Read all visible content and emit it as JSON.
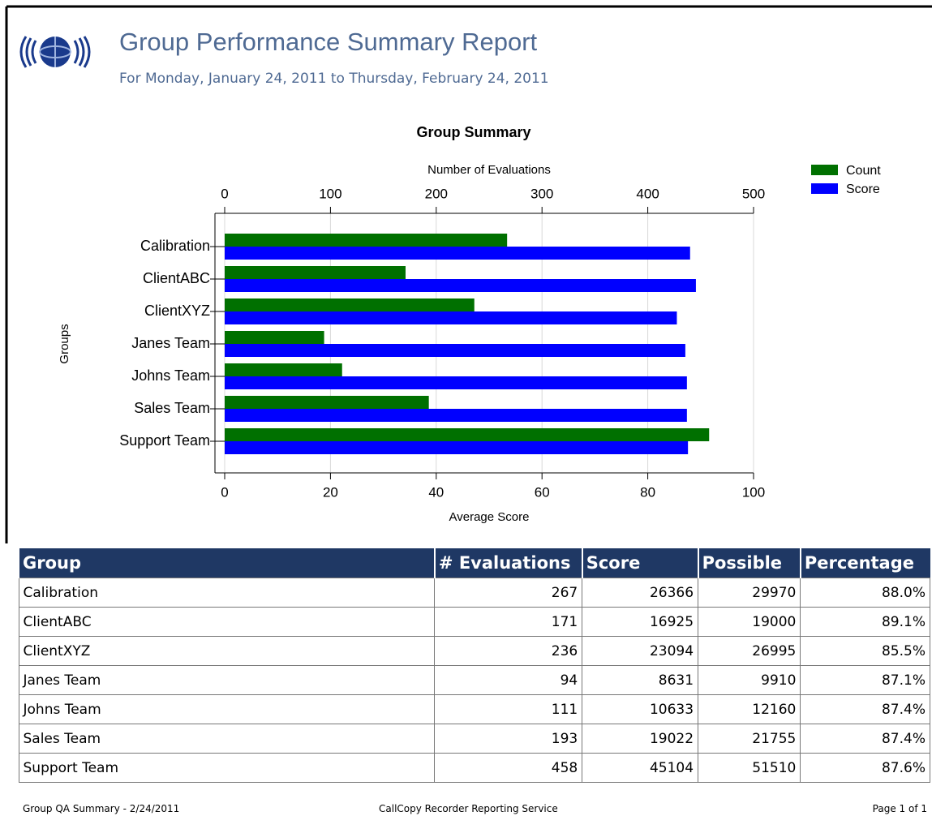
{
  "header": {
    "title": "Group Performance Summary Report",
    "subtitle": "For Monday, January 24, 2011 to Thursday, February 24, 2011"
  },
  "chart_data": {
    "type": "hbar",
    "title": "Group Summary",
    "categories": [
      "Calibration",
      "ClientABC",
      "ClientXYZ",
      "Janes Team",
      "Johns Team",
      "Sales Team",
      "Support Team"
    ],
    "series": [
      {
        "name": "Count",
        "color": "#007000",
        "axis": "x2",
        "values": [
          267,
          171,
          236,
          94,
          111,
          193,
          458
        ]
      },
      {
        "name": "Score",
        "color": "#0000ff",
        "values": [
          88.0,
          89.1,
          85.5,
          87.1,
          87.4,
          87.4,
          87.6
        ]
      }
    ],
    "ylabel": "Groups",
    "xlabel": "Average Score",
    "x2label": "Number of Evaluations",
    "xlim": [
      0,
      100
    ],
    "xticks": [
      0,
      20,
      40,
      60,
      80,
      100
    ],
    "x2lim": [
      0,
      500
    ],
    "x2ticks": [
      0,
      100,
      200,
      300,
      400,
      500
    ],
    "grid": true,
    "legend": "top-right"
  },
  "table": {
    "header": [
      "Group",
      "# Evaluations",
      "Score",
      "Possible",
      "Percentage"
    ],
    "rows": [
      [
        "Calibration",
        267,
        26366,
        29970,
        "88.0%"
      ],
      [
        "ClientABC",
        171,
        16925,
        19000,
        "89.1%"
      ],
      [
        "ClientXYZ",
        236,
        23094,
        26995,
        "85.5%"
      ],
      [
        "Janes Team",
        94,
        8631,
        9910,
        "87.1%"
      ],
      [
        "Johns Team",
        111,
        10633,
        12160,
        "87.4%"
      ],
      [
        "Sales Team",
        193,
        19022,
        21755,
        "87.4%"
      ],
      [
        "Support Team",
        458,
        45104,
        51510,
        "87.6%"
      ]
    ]
  },
  "footer": {
    "left": "Group QA Summary - 2/24/2011",
    "center": "CallCopy Recorder Reporting Service",
    "right": "Page 1 of 1"
  }
}
